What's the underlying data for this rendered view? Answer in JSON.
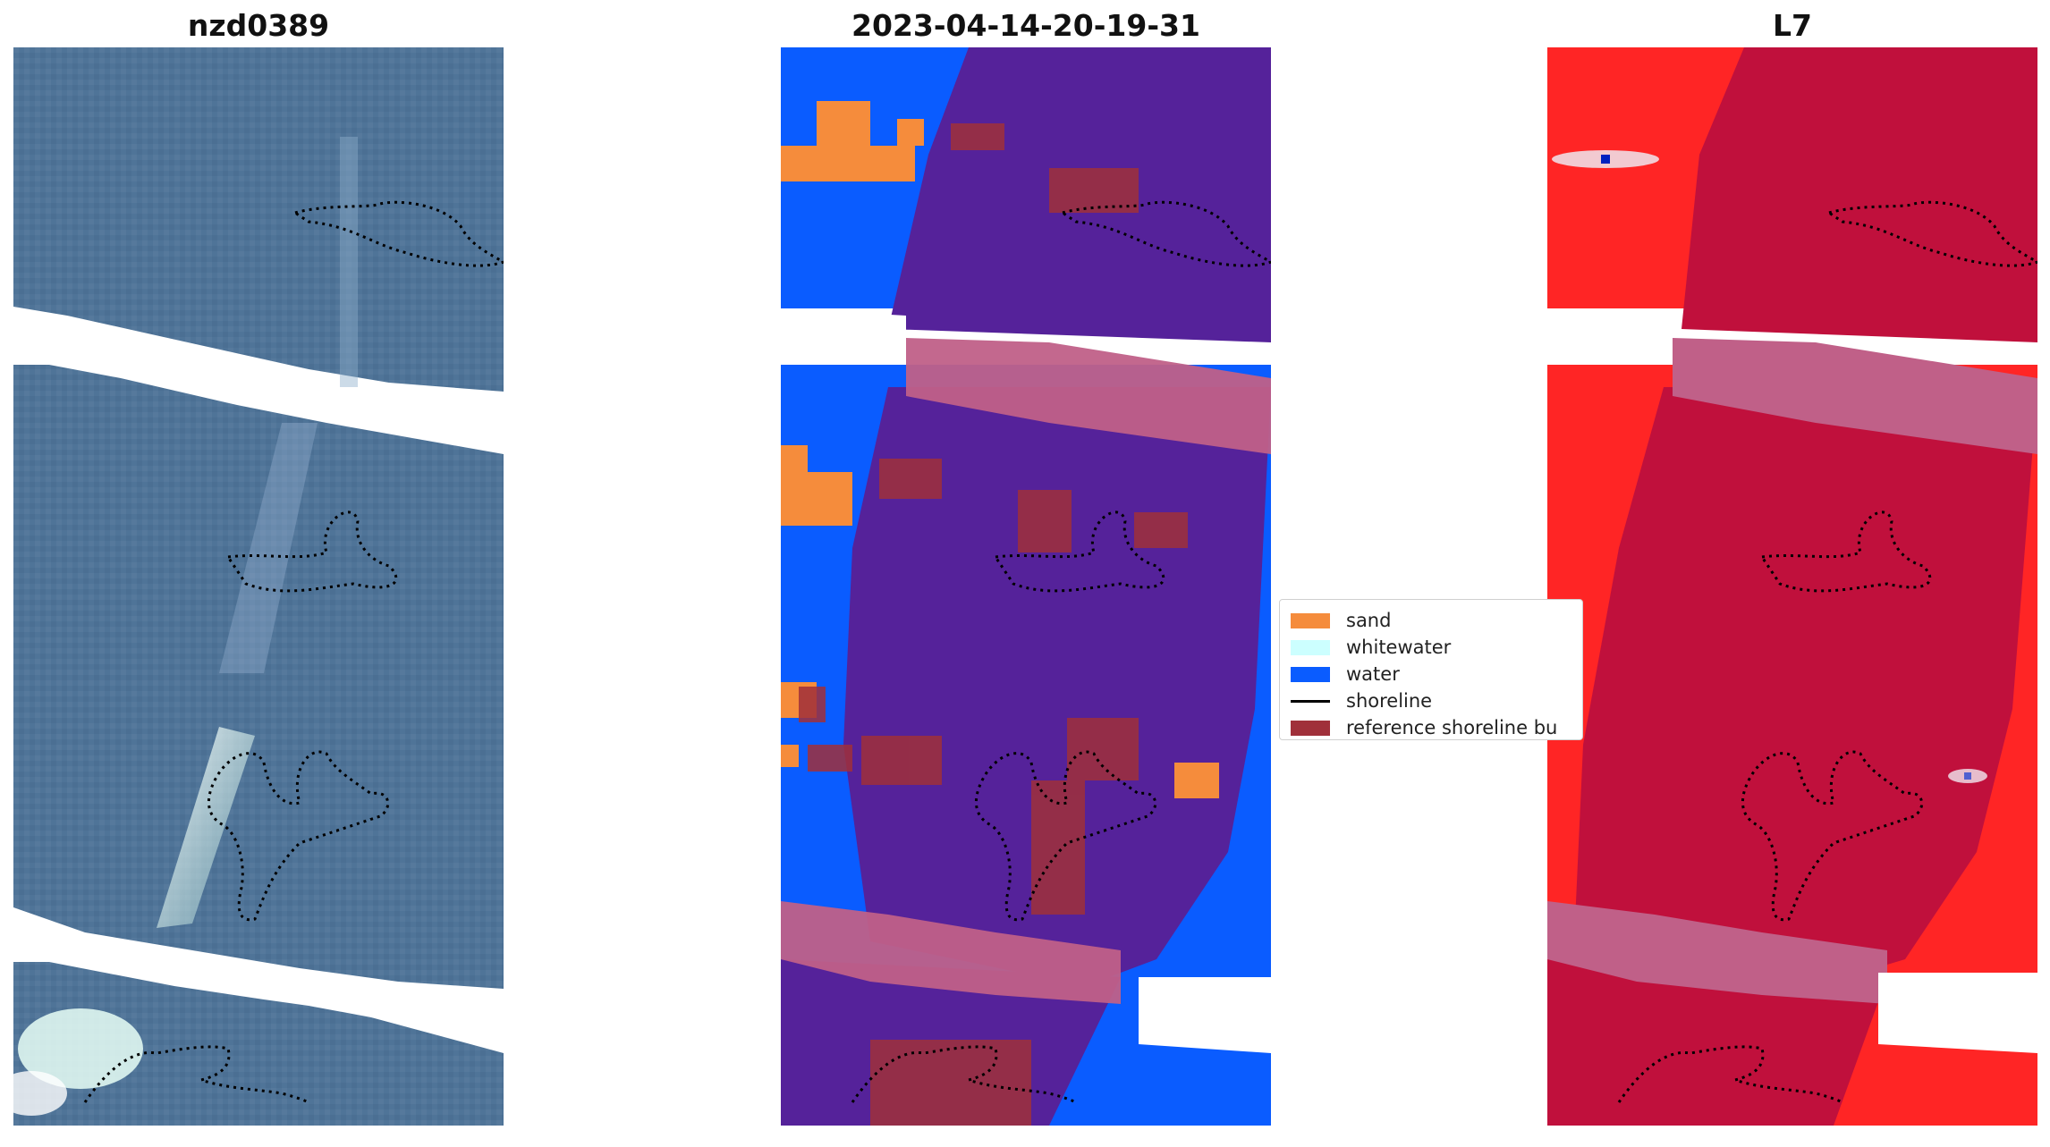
{
  "panels": [
    {
      "title": "nzd0389"
    },
    {
      "title": "2023-04-14-20-19-31"
    },
    {
      "title": "L7"
    }
  ],
  "legend": {
    "items": [
      {
        "label": "sand",
        "color": "#f58c3c",
        "kind": "patch"
      },
      {
        "label": "whitewater",
        "color": "#ccffff",
        "kind": "patch"
      },
      {
        "label": "water",
        "color": "#0a5cff",
        "kind": "patch"
      },
      {
        "label": "shoreline",
        "color": "#000000",
        "kind": "line"
      },
      {
        "label": "reference shoreline bu",
        "color": "#a0303a",
        "kind": "patch"
      }
    ]
  },
  "colors": {
    "rgb_base": "#4f7498",
    "class_land": "#55229a",
    "class_water": "#0a5cff",
    "class_band": "#c06088",
    "index_high": "#ff2525",
    "index_low": "#c0103c",
    "band_overlay": "#c06088"
  }
}
